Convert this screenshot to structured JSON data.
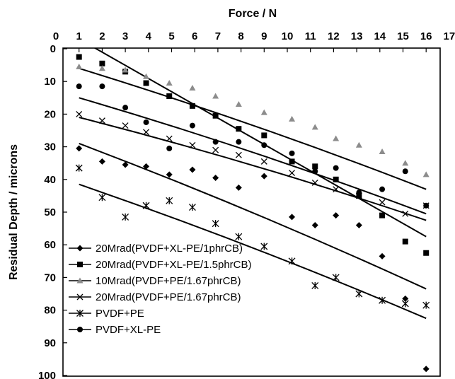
{
  "chart_data": {
    "type": "scatter",
    "title": "",
    "xlabel": "Force / N",
    "ylabel": "Residual Depth / microns",
    "xlim": [
      0,
      17
    ],
    "ylim": [
      0,
      100
    ],
    "y_inverted": true,
    "x_axis_position": "top",
    "x_ticks": [
      "0",
      "1",
      "2",
      "3",
      "4",
      "5",
      "6",
      "7",
      "8",
      "9",
      "10",
      "11",
      "12",
      "13",
      "14",
      "15",
      "16",
      "17"
    ],
    "y_ticks": [
      "0",
      "10",
      "20",
      "30",
      "40",
      "50",
      "60",
      "70",
      "80",
      "90",
      "100"
    ],
    "grid": false,
    "legend_position": "bottom-left",
    "series": [
      {
        "name": "20Mrad(PVDF+XL-PE/1phrCB)",
        "marker": "diamond",
        "x": [
          1,
          2,
          3,
          3.9,
          4.9,
          5.9,
          6.9,
          7.9,
          9,
          10.2,
          11.2,
          12.1,
          13.1,
          14.1,
          15.1,
          16
        ],
        "y": [
          30.5,
          34.5,
          35.5,
          36,
          38.5,
          37,
          39.5,
          42.5,
          39,
          51.5,
          54,
          51,
          54,
          63.5,
          76.5,
          98
        ],
        "trend": [
          [
            1,
            29
          ],
          [
            16,
            73.5
          ]
        ]
      },
      {
        "name": "20Mrad(PVDF+XL-PE/1.5phrCB)",
        "marker": "square",
        "x": [
          1,
          2,
          3,
          3.9,
          4.9,
          5.9,
          6.9,
          7.9,
          9,
          10.2,
          11.2,
          12.1,
          13.1,
          14.1,
          15.1,
          16
        ],
        "y": [
          2.5,
          4.5,
          7,
          10.5,
          14.5,
          17.5,
          20.5,
          24.5,
          26.5,
          34.5,
          36,
          40,
          45,
          51,
          59,
          62.5
        ],
        "trend": [
          [
            1,
            -3
          ],
          [
            16,
            57.5
          ]
        ]
      },
      {
        "name": "10Mrad(PVDF+PE/1.67phrCB)",
        "marker": "triangle",
        "x": [
          1,
          2,
          3,
          3.9,
          4.9,
          5.9,
          6.9,
          7.9,
          9,
          10.2,
          11.2,
          12.1,
          13.1,
          14.1,
          15.1,
          16
        ],
        "y": [
          5.5,
          6,
          6.5,
          8.5,
          10.5,
          12,
          14.5,
          17,
          19.5,
          21.5,
          24,
          27.5,
          29.5,
          31.5,
          35,
          38.5
        ],
        "trend": [
          [
            1,
            6
          ],
          [
            16,
            43
          ]
        ]
      },
      {
        "name": "20Mrad(PVDF+PE/1.67phrCB)",
        "marker": "x",
        "x": [
          1,
          2,
          3,
          3.9,
          4.9,
          5.9,
          6.9,
          7.9,
          9,
          10.2,
          11.2,
          12.1,
          13.1,
          14.1,
          15.1,
          16
        ],
        "y": [
          20,
          22,
          23.5,
          25.5,
          27.5,
          29.5,
          31,
          32.5,
          34.5,
          38,
          41,
          43,
          45,
          47,
          50.5,
          48
        ],
        "trend": [
          [
            1,
            21
          ],
          [
            16,
            52.5
          ]
        ]
      },
      {
        "name": "PVDF+PE",
        "marker": "star",
        "x": [
          1,
          2,
          3,
          3.9,
          4.9,
          5.9,
          6.9,
          7.9,
          9,
          10.2,
          11.2,
          12.1,
          13.1,
          14.1,
          15.1,
          16
        ],
        "y": [
          36.5,
          45.5,
          51.5,
          48,
          46.5,
          48.5,
          53.5,
          57.5,
          60.5,
          65,
          72.5,
          70,
          75,
          77,
          78,
          78.5
        ],
        "trend": [
          [
            1,
            41.5
          ],
          [
            16,
            82.5
          ]
        ]
      },
      {
        "name": "PVDF+XL-PE",
        "marker": "circle",
        "x": [
          1,
          2,
          3,
          3.9,
          4.9,
          5.9,
          6.9,
          7.9,
          9,
          10.2,
          11.2,
          12.1,
          13.1,
          14.1,
          15.1,
          16
        ],
        "y": [
          11.5,
          11.5,
          18,
          22.5,
          30.5,
          23.5,
          28.5,
          28.5,
          29.5,
          32,
          37.5,
          36.5,
          44,
          43,
          37.5,
          48
        ],
        "trend": [
          [
            1,
            15
          ],
          [
            16,
            50.5
          ]
        ]
      }
    ]
  }
}
